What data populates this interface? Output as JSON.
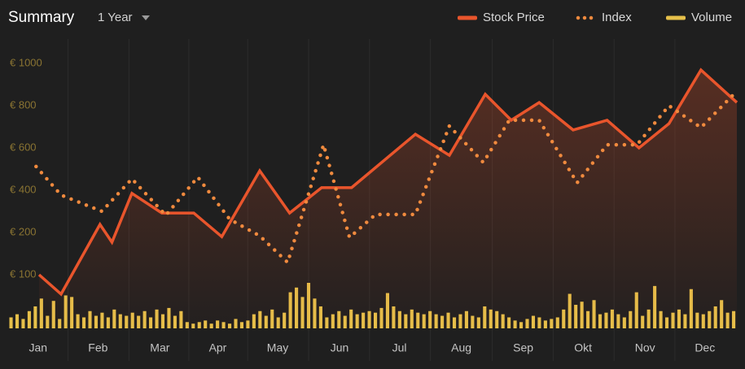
{
  "header": {
    "title": "Summary",
    "range": "1 Year"
  },
  "chart_data": {
    "type": "line",
    "xlim": [
      0,
      365
    ],
    "xticks": [
      {
        "value": 15,
        "label": "Jan"
      },
      {
        "value": 45,
        "label": "Feb"
      },
      {
        "value": 76,
        "label": "Mar"
      },
      {
        "value": 105,
        "label": "Apr"
      },
      {
        "value": 135,
        "label": "May"
      },
      {
        "value": 166,
        "label": "Jun"
      },
      {
        "value": 196,
        "label": "Jul"
      },
      {
        "value": 227,
        "label": "Aug"
      },
      {
        "value": 258,
        "label": "Sep"
      },
      {
        "value": 288,
        "label": "Okt"
      },
      {
        "value": 319,
        "label": "Nov"
      },
      {
        "value": 349,
        "label": "Dec"
      }
    ],
    "ylim": [
      0,
      1100
    ],
    "yticks": [
      {
        "value": 1000,
        "label": "€ 1000"
      },
      {
        "value": 800,
        "label": "€ 800"
      },
      {
        "value": 600,
        "label": "€ 600"
      },
      {
        "value": 400,
        "label": "€ 400"
      },
      {
        "value": 200,
        "label": "€ 200"
      },
      {
        "value": 100,
        "label": "€ 100"
      }
    ],
    "grid": true,
    "legend": "top-right",
    "series": [
      {
        "name": "Stock Price",
        "color": "#e9552c",
        "style": "solid",
        "x": [
          15.5,
          26.5,
          46,
          52,
          62,
          77,
          93,
          107,
          126,
          141,
          157,
          172,
          204,
          221,
          239,
          252,
          266,
          283,
          300,
          316,
          331,
          347,
          365
        ],
        "values": [
          100,
          54,
          238,
          177,
          385,
          292,
          292,
          190,
          492,
          292,
          412,
          412,
          665,
          565,
          854,
          731,
          815,
          685,
          731,
          600,
          715,
          969,
          815
        ]
      },
      {
        "name": "Index",
        "color": "#f08a3e",
        "style": "dotted",
        "x": [
          14,
          26.5,
          47,
          62,
          79,
          95,
          111,
          126,
          140,
          158,
          171,
          184,
          204,
          221,
          238,
          251,
          266,
          285,
          300,
          315,
          331,
          347,
          365
        ],
        "values": [
          512,
          377,
          300,
          454,
          281,
          462,
          262,
          192,
          129,
          615,
          188,
          285,
          285,
          704,
          531,
          731,
          731,
          435,
          615,
          615,
          800,
          696,
          869
        ]
      },
      {
        "name": "Volume",
        "color": "#e6c04a",
        "style": "bars",
        "values": [
          14,
          18,
          12,
          22,
          28,
          38,
          16,
          35,
          12,
          42,
          40,
          18,
          14,
          22,
          16,
          20,
          14,
          24,
          18,
          16,
          20,
          16,
          22,
          14,
          24,
          18,
          26,
          16,
          22,
          8,
          6,
          8,
          10,
          6,
          10,
          8,
          6,
          12,
          8,
          10,
          18,
          22,
          16,
          24,
          14,
          20,
          46,
          52,
          40,
          58,
          38,
          28,
          14,
          18,
          22,
          16,
          24,
          18,
          20,
          22,
          20,
          26,
          45,
          28,
          22,
          18,
          24,
          20,
          18,
          22,
          18,
          16,
          20,
          14,
          18,
          22,
          16,
          14,
          28,
          24,
          22,
          18,
          14,
          10,
          8,
          12,
          16,
          14,
          10,
          12,
          14,
          24,
          44,
          30,
          34,
          22,
          36,
          18,
          20,
          24,
          18,
          14,
          22,
          46,
          16,
          24,
          54,
          22,
          14,
          20,
          24,
          18,
          50,
          20,
          18,
          22,
          28,
          36,
          20,
          22
        ]
      }
    ]
  }
}
